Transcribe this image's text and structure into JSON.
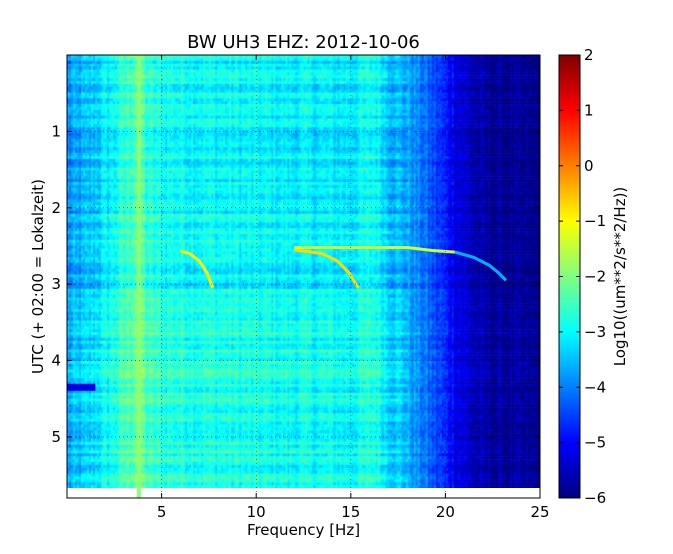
{
  "chart_data": {
    "type": "heatmap",
    "title": "BW UH3 EHZ: 2012-10-06",
    "xlabel": "Frequency [Hz]",
    "ylabel": "UTC (+ 02:00 = Lokalzeit)",
    "xlim": [
      0,
      25
    ],
    "ylim": [
      5.8,
      0.0
    ],
    "xticks": [
      5,
      10,
      15,
      20,
      25
    ],
    "xtick_labels": [
      "5",
      "10",
      "15",
      "20",
      "25"
    ],
    "yticks": [
      1,
      2,
      3,
      4,
      5
    ],
    "ytick_labels": [
      "1",
      "2",
      "3",
      "4",
      "5"
    ],
    "grid": true,
    "colormap": "jet",
    "colorbar": {
      "label": "Log10((um**2/s**2/Hz))",
      "range": [
        -6,
        2
      ],
      "ticks": [
        2,
        1,
        0,
        -1,
        -2,
        -3,
        -4,
        -5,
        -6
      ],
      "tick_labels": [
        "2",
        "1",
        "0",
        "−1",
        "−2",
        "−3",
        "−4",
        "−5",
        "−6"
      ]
    },
    "colors": {
      "jet_stops": [
        "#00007f",
        "#0000ff",
        "#007fff",
        "#00ffff",
        "#7fff7f",
        "#ffff00",
        "#ff7f00",
        "#ff0000",
        "#7f0000"
      ]
    },
    "frequency_profile": {
      "hz": [
        0,
        1,
        2,
        3,
        3.5,
        3.8,
        4.2,
        5,
        8,
        10,
        12,
        15,
        16.3,
        17,
        18,
        19,
        20,
        21,
        22,
        25
      ],
      "log10_psd": [
        -3.9,
        -3.6,
        -3.2,
        -2.7,
        -2.4,
        -2.0,
        -2.7,
        -2.9,
        -3.0,
        -3.05,
        -3.1,
        -3.15,
        -2.9,
        -3.4,
        -3.7,
        -4.2,
        -4.8,
        -5.4,
        -5.8,
        -6.0
      ]
    },
    "features": [
      {
        "type": "harmonic",
        "points": [
          [
            6.0,
            2.57
          ],
          [
            6.5,
            2.6
          ],
          [
            7.0,
            2.7
          ],
          [
            7.4,
            2.85
          ],
          [
            7.7,
            3.05
          ]
        ],
        "log10_psd": -0.9
      },
      {
        "type": "harmonic",
        "points": [
          [
            12.0,
            2.55
          ],
          [
            13.5,
            2.6
          ],
          [
            14.3,
            2.7
          ],
          [
            14.9,
            2.85
          ],
          [
            15.4,
            3.05
          ]
        ],
        "log10_psd": -0.7
      },
      {
        "type": "harmonic",
        "points": [
          [
            12.0,
            2.52
          ],
          [
            16.0,
            2.52
          ],
          [
            18.0,
            2.52
          ],
          [
            19.3,
            2.56
          ],
          [
            20.5,
            2.58
          ]
        ],
        "log10_psd": -1.4
      },
      {
        "type": "harmonic",
        "points": [
          [
            20.5,
            2.58
          ],
          [
            21.5,
            2.65
          ],
          [
            22.3,
            2.75
          ],
          [
            22.8,
            2.85
          ],
          [
            23.2,
            2.95
          ]
        ],
        "log10_psd": -3.6
      },
      {
        "type": "band",
        "points": [
          [
            0.0,
            4.35
          ],
          [
            1.5,
            4.35
          ]
        ],
        "log10_psd": -5.2
      },
      {
        "type": "band",
        "points": [
          [
            3.8,
            0.0
          ],
          [
            3.8,
            5.8
          ]
        ],
        "log10_psd": -1.9
      }
    ]
  }
}
